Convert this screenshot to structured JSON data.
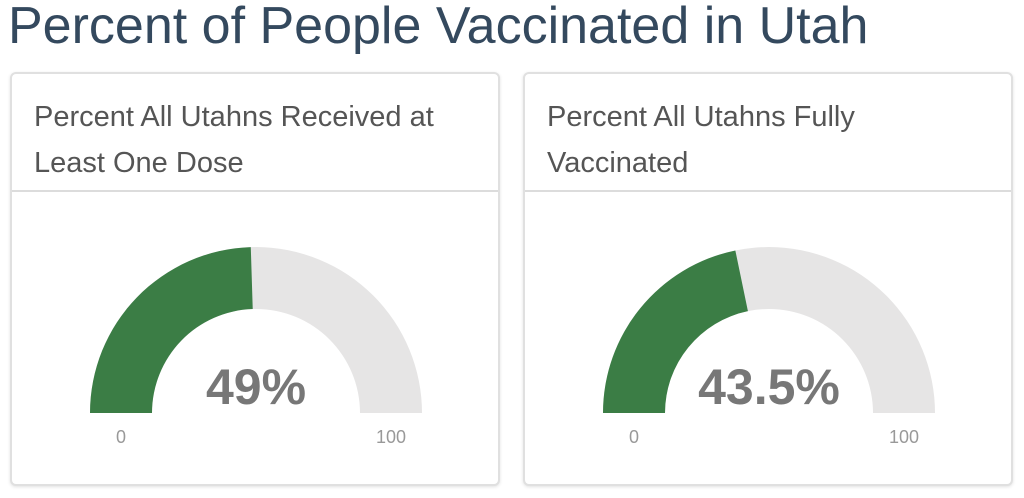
{
  "title": "Percent of People Vaccinated in Utah",
  "chart_data": [
    {
      "type": "gauge",
      "title": "Percent All Utahns Received at Least One Dose",
      "values": [
        49
      ],
      "value_labels": [
        "49%"
      ],
      "color": "#3b7d45",
      "ylim": [
        0,
        100
      ],
      "yticks": [
        0,
        100
      ]
    },
    {
      "type": "gauge",
      "title": "Percent All Utahns Fully Vaccinated",
      "values": [
        43.5
      ],
      "value_labels": [
        "43.5%"
      ],
      "color": "#3b7d45",
      "ylim": [
        0,
        100
      ],
      "yticks": [
        0,
        100
      ]
    }
  ]
}
